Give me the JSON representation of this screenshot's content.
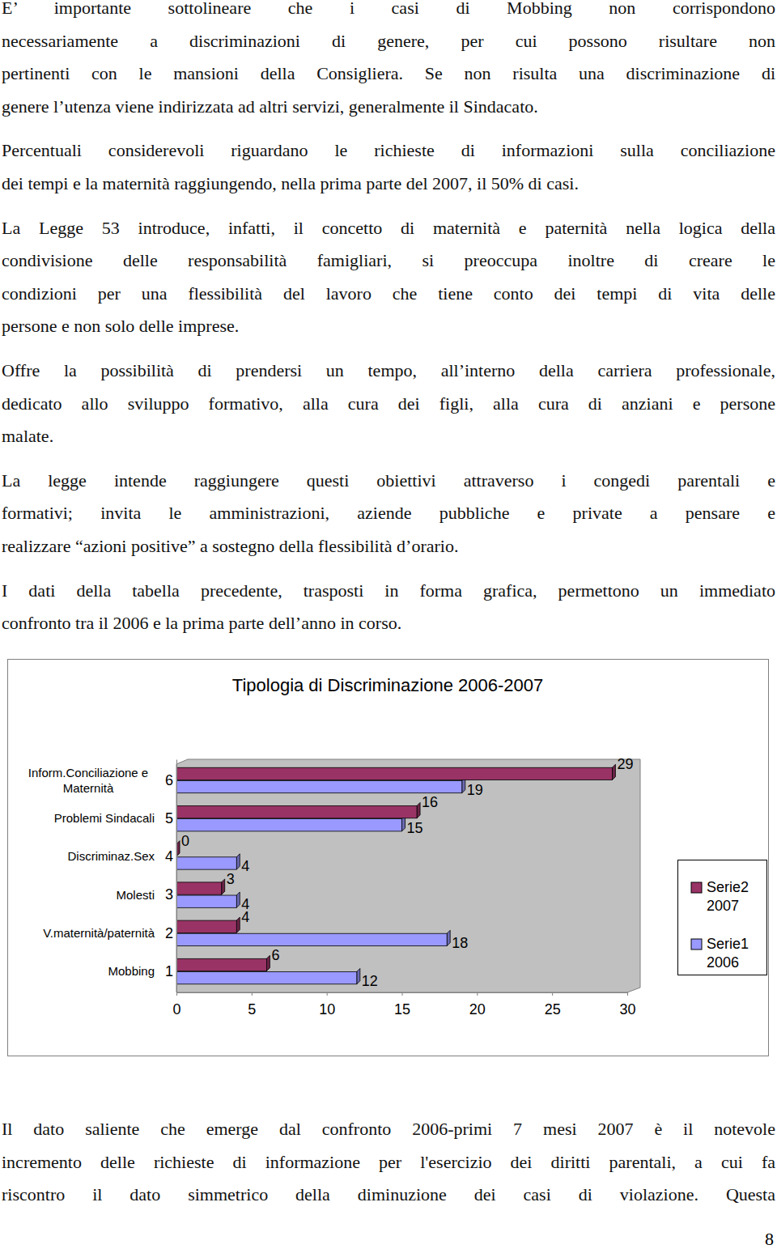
{
  "text_before": [
    [
      "E’ importante sottolineare che i casi di Mobbing non corrispondono",
      "necessariamente a discriminazioni di genere, per cui possono risultare non",
      "pertinenti con le mansioni della Consigliera. Se non risulta una discriminazione di",
      "genere l’utenza viene indirizzata ad altri servizi, generalmente il Sindacato."
    ],
    [
      "Percentuali considerevoli riguardano le richieste di informazioni sulla conciliazione",
      "dei tempi e la maternità raggiungendo, nella prima parte del 2007, il 50% di casi."
    ],
    [
      "La Legge 53 introduce, infatti, il concetto di maternità e paternità nella logica della",
      "condivisione delle responsabilità famigliari, si preoccupa inoltre di creare le",
      "condizioni per una flessibilità del lavoro che tiene conto dei tempi di vita delle",
      "persone e non solo delle imprese."
    ],
    [
      "Offre la possibilità di prendersi un tempo, all’interno della carriera professionale,",
      "dedicato allo sviluppo formativo, alla cura dei figli, alla cura di anziani e persone",
      "malate."
    ],
    [
      "La legge intende raggiungere questi obiettivi attraverso i congedi parentali e",
      "formativi; invita le amministrazioni, aziende pubbliche e private a pensare e",
      "realizzare “azioni positive” a sostegno della flessibilità d’orario."
    ],
    [
      "I dati della tabella precedente, trasposti in forma grafica, permettono un immediato",
      "confronto tra il 2006 e la prima parte dell’anno in corso."
    ]
  ],
  "chart_data": {
    "type": "bar",
    "orientation": "horizontal",
    "title": "Tipologia di Discriminazione 2006-2007",
    "categories": [
      "Mobbing",
      "V.maternità/paternità",
      "Molesti",
      "Discriminaz.Sex",
      "Problemi Sindacali",
      "Inform.Conciliazione e Maternità"
    ],
    "category_numbers": [
      1,
      2,
      3,
      4,
      5,
      6
    ],
    "series": [
      {
        "name": "Serie1 2006",
        "color": "#9999ff",
        "values": [
          12,
          18,
          4,
          4,
          15,
          19
        ]
      },
      {
        "name": "Serie2 2007",
        "color": "#993366",
        "values": [
          6,
          4,
          3,
          0,
          16,
          29
        ]
      }
    ],
    "xlim": [
      0,
      30
    ],
    "xticks": [
      0,
      5,
      10,
      15,
      20,
      25,
      30
    ],
    "grid": false,
    "legend": "right",
    "data_labels": true
  },
  "text_after": [
    [
      "Il dato saliente che emerge dal confronto 2006-primi 7 mesi 2007 è il notevole",
      "incremento delle richieste di informazione per l'esercizio dei diritti parentali, a cui fa",
      "riscontro il dato simmetrico della diminuzione dei casi di violazione. Questa"
    ]
  ],
  "page_number": "8"
}
